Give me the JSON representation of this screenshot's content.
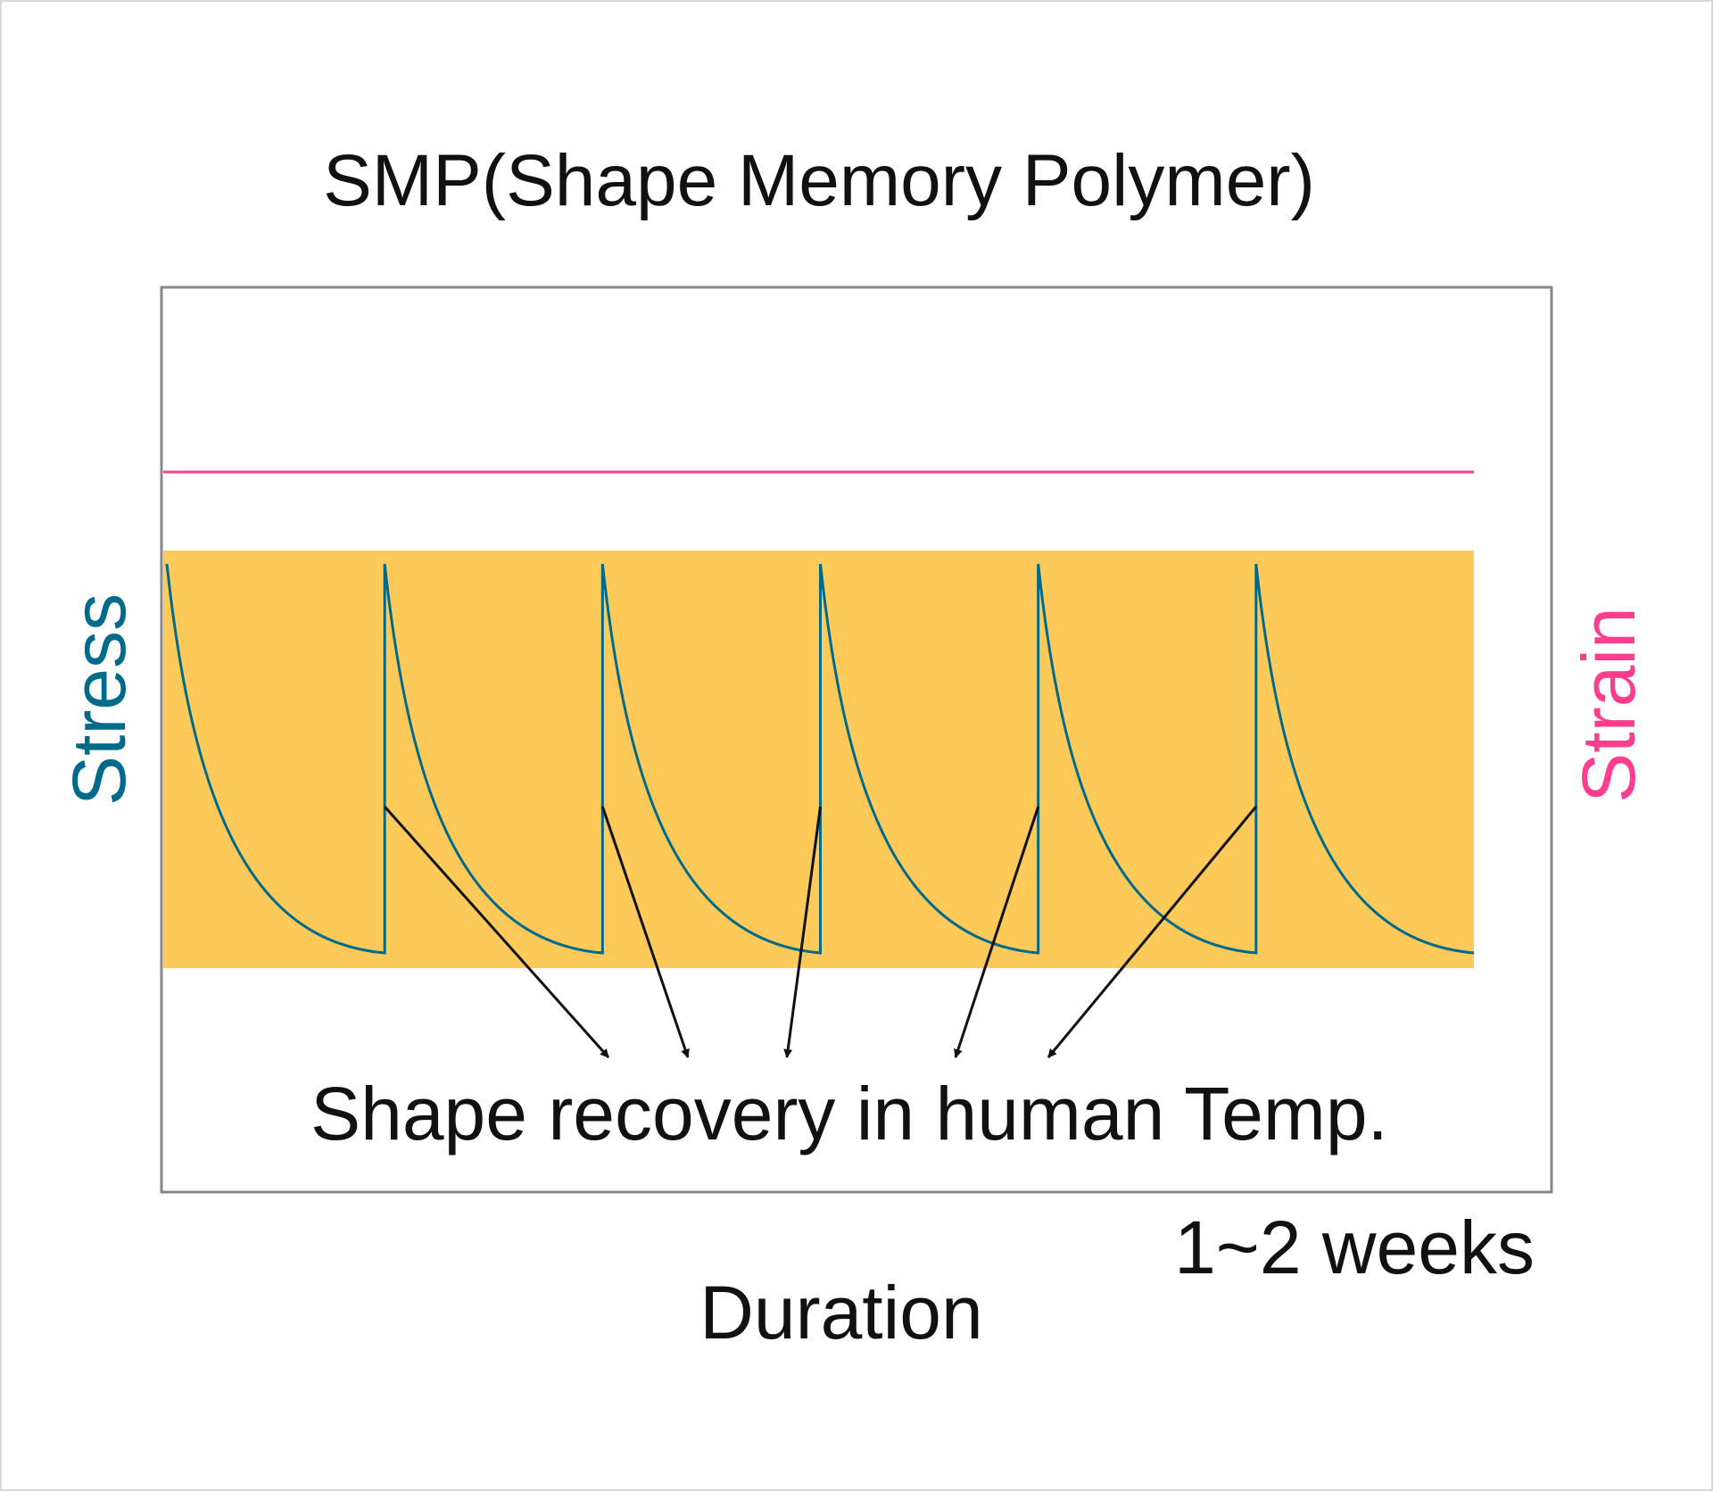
{
  "chart_data": {
    "type": "line",
    "title": "SMP(Shape Memory Polymer)",
    "xlabel": "Duration",
    "ylabel_left": "Stress",
    "ylabel_right": "Strain",
    "x_end_label": "1~2 weeks",
    "annotation": "Shape recovery in human Temp.",
    "grid": false,
    "series": [
      {
        "name": "Strain",
        "type": "constant",
        "value": 1.0,
        "color": "#ff3d8f"
      },
      {
        "name": "Stress",
        "type": "sawtooth-decay",
        "cycles": 6,
        "peak": 0.8,
        "trough": 0.2,
        "color": "#006a8a"
      }
    ],
    "band": {
      "range": [
        0.15,
        0.85
      ],
      "color": "#fdca5a"
    },
    "annotation_arrow_count": 5,
    "colors": {
      "stress": "#006a8a",
      "strain": "#ff3d8f",
      "band": "#fdca5a",
      "frame": "#888888",
      "text": "#111111"
    }
  }
}
